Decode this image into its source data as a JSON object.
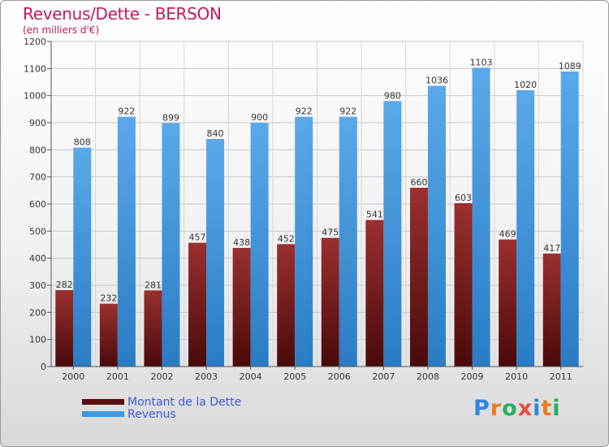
{
  "title": "Revenus/Dette - BERSON",
  "subtitle": "(en milliers d'€)",
  "brand": {
    "letters": [
      "P",
      "r",
      "o",
      "x",
      "i",
      "t",
      "i"
    ],
    "colors": [
      "#2e86de",
      "#e67e22",
      "#27ae60",
      "#e74c3c",
      "#2e86de",
      "#e67e22",
      "#27ae60"
    ]
  },
  "chart_data": {
    "type": "bar",
    "categories": [
      "2000",
      "2001",
      "2002",
      "2003",
      "2004",
      "2005",
      "2006",
      "2007",
      "2008",
      "2009",
      "2010",
      "2011"
    ],
    "series": [
      {
        "name": "Montant de la Dette",
        "color": "#7b1c1c",
        "values": [
          282,
          232,
          281,
          457,
          438,
          452,
          475,
          541,
          660,
          603,
          469,
          417
        ]
      },
      {
        "name": "Revenus",
        "color": "#3f98e0",
        "values": [
          808,
          922,
          899,
          840,
          900,
          922,
          922,
          980,
          1036,
          1103,
          1020,
          1089
        ]
      }
    ],
    "ylim": [
      0,
      1200
    ],
    "yticks": [
      0,
      100,
      200,
      300,
      400,
      500,
      600,
      700,
      800,
      900,
      1000,
      1100,
      1200
    ],
    "grid": true,
    "legend_position": "bottom-left"
  }
}
